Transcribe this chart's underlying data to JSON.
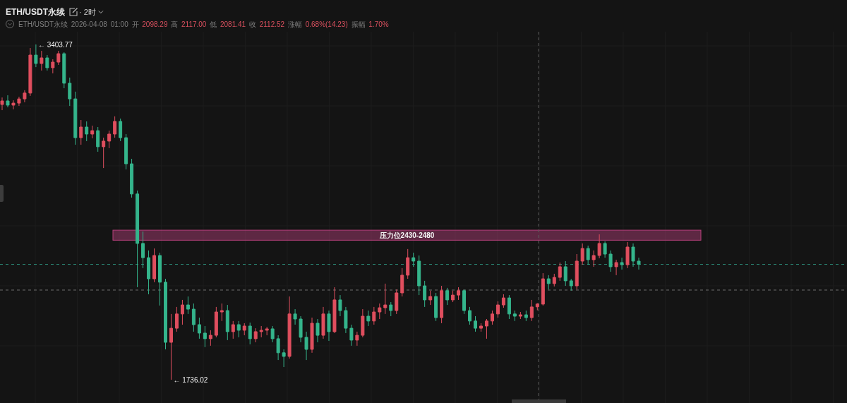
{
  "chart_data": {
    "type": "candlestick",
    "title": "ETH/USDT永续",
    "subtitle": "ETH/USDT永续 2026-04-08 01:00 开 2098.29 高 2117.00 低 2081.41 收 2112.52 涨幅 0.68%(14.23) 振幅 1.70%",
    "annotations": [
      "· 2时",
      "← 3403.77",
      "← 1736.02"
    ],
    "categories": [
      null,
      null,
      null,
      null,
      null,
      null,
      null,
      null,
      null,
      null,
      null,
      null,
      null,
      null,
      null,
      null,
      null,
      null,
      null,
      null,
      null,
      null,
      null,
      null,
      null,
      null,
      null,
      null,
      null,
      null,
      null,
      null,
      null,
      null,
      null,
      null,
      null,
      null,
      null,
      null,
      null,
      null,
      null,
      null,
      null,
      null,
      null,
      null,
      null,
      null,
      null,
      null,
      null,
      null,
      null,
      null,
      null,
      null,
      null,
      null,
      null,
      null,
      null,
      null,
      null,
      null,
      null,
      null,
      null,
      null,
      null,
      null,
      null,
      null,
      null,
      null,
      null,
      null,
      null,
      null,
      null,
      null,
      null,
      null,
      null,
      null,
      null,
      null,
      null,
      null,
      null,
      null,
      null,
      null,
      null,
      null,
      null,
      null,
      null,
      null,
      null,
      null,
      null,
      null,
      null,
      null,
      null,
      null,
      null,
      null,
      null,
      null,
      null,
      null
    ],
    "ohlc": [
      [
        3105,
        3140,
        3077,
        3123
      ],
      [
        3123,
        3151,
        3091,
        3102
      ],
      [
        3102,
        3126,
        3081,
        3112
      ],
      [
        3112,
        3144,
        3098,
        3133
      ],
      [
        3133,
        3176,
        3116,
        3162
      ],
      [
        3162,
        3386,
        3148,
        3351
      ],
      [
        3351,
        3403.77,
        3291,
        3309
      ],
      [
        3309,
        3372,
        3274,
        3337
      ],
      [
        3337,
        3351,
        3274,
        3288
      ],
      [
        3288,
        3330,
        3260,
        3316
      ],
      [
        3316,
        3372,
        3302,
        3358
      ],
      [
        3358,
        3365,
        3186,
        3211
      ],
      [
        3211,
        3239,
        3098,
        3133
      ],
      [
        3133,
        3169,
        2905,
        2940
      ],
      [
        2940,
        3028,
        2905,
        2993
      ],
      [
        2993,
        3021,
        2923,
        2958
      ],
      [
        2958,
        3000,
        2937,
        2975
      ],
      [
        2975,
        2993,
        2870,
        2895
      ],
      [
        2895,
        2940,
        2789,
        2923
      ],
      [
        2923,
        2975,
        2888,
        2958
      ],
      [
        2958,
        3046,
        2940,
        3021
      ],
      [
        3021,
        3035,
        2923,
        2940
      ],
      [
        2940,
        2958,
        2782,
        2810
      ],
      [
        2810,
        2835,
        2642,
        2660
      ],
      [
        2660,
        2677,
        2196,
        2414
      ],
      [
        2414,
        2473,
        2291,
        2343
      ],
      [
        2343,
        2379,
        2161,
        2238
      ],
      [
        2238,
        2389,
        2221,
        2354
      ],
      [
        2354,
        2368,
        2105,
        2221
      ],
      [
        2221,
        2238,
        1887,
        1922
      ],
      [
        1922,
        2063,
        1736.02,
        1992
      ],
      [
        1992,
        2098,
        1975,
        2063
      ],
      [
        2063,
        2133,
        2010,
        2108
      ],
      [
        2108,
        2150,
        2063,
        2087
      ],
      [
        2087,
        2115,
        1975,
        2010
      ],
      [
        2010,
        2045,
        1940,
        1968
      ],
      [
        1968,
        2003,
        1898,
        1940
      ],
      [
        1940,
        1982,
        1905,
        1957
      ],
      [
        1957,
        2098,
        1947,
        2073
      ],
      [
        2073,
        2115,
        2028,
        2080
      ],
      [
        2080,
        2108,
        1933,
        1975
      ],
      [
        1975,
        2028,
        1940,
        2010
      ],
      [
        2010,
        2028,
        1947,
        1982
      ],
      [
        1982,
        2017,
        1957,
        2003
      ],
      [
        2003,
        2020,
        1912,
        1940
      ],
      [
        1940,
        1992,
        1922,
        1975
      ],
      [
        1975,
        2003,
        1947,
        1982
      ],
      [
        1982,
        1999,
        1957,
        1989
      ],
      [
        1989,
        2003,
        1922,
        1940
      ],
      [
        1940,
        1957,
        1834,
        1870
      ],
      [
        1870,
        1887,
        1799,
        1852
      ],
      [
        1852,
        2150,
        1841,
        2063
      ],
      [
        2063,
        2087,
        2010,
        2038
      ],
      [
        2038,
        2052,
        1922,
        1947
      ],
      [
        1947,
        1975,
        1834,
        1887
      ],
      [
        1887,
        2045,
        1870,
        2017
      ],
      [
        2017,
        2038,
        1922,
        1957
      ],
      [
        1957,
        2098,
        1940,
        2063
      ],
      [
        2063,
        2080,
        1929,
        1975
      ],
      [
        1975,
        2196,
        1968,
        2133
      ],
      [
        2133,
        2157,
        2052,
        2080
      ],
      [
        2080,
        2098,
        1968,
        1992
      ],
      [
        1992,
        2010,
        1905,
        1933
      ],
      [
        1933,
        1975,
        1905,
        1957
      ],
      [
        1957,
        2087,
        1947,
        2052
      ],
      [
        2052,
        2080,
        2003,
        2028
      ],
      [
        2028,
        2098,
        2010,
        2073
      ],
      [
        2073,
        2115,
        2038,
        2094
      ],
      [
        2094,
        2214,
        2063,
        2108
      ],
      [
        2108,
        2122,
        2052,
        2080
      ],
      [
        2080,
        2185,
        2063,
        2168
      ],
      [
        2168,
        2291,
        2150,
        2256
      ],
      [
        2256,
        2386,
        2238,
        2343
      ],
      [
        2343,
        2368,
        2298,
        2326
      ],
      [
        2326,
        2354,
        2157,
        2203
      ],
      [
        2203,
        2228,
        2098,
        2133
      ],
      [
        2133,
        2179,
        2108,
        2150
      ],
      [
        2150,
        2168,
        2028,
        2045
      ],
      [
        2045,
        2203,
        2017,
        2179
      ],
      [
        2179,
        2193,
        2108,
        2133
      ],
      [
        2133,
        2179,
        2122,
        2157
      ],
      [
        2157,
        2196,
        2133,
        2179
      ],
      [
        2179,
        2185,
        2063,
        2080
      ],
      [
        2080,
        2098,
        2010,
        2028
      ],
      [
        2028,
        2052,
        1975,
        1992
      ],
      [
        1992,
        2017,
        1975,
        2003
      ],
      [
        2003,
        2038,
        1940,
        2028
      ],
      [
        2028,
        2080,
        2010,
        2063
      ],
      [
        2063,
        2126,
        2045,
        2108
      ],
      [
        2108,
        2161,
        2094,
        2143
      ],
      [
        2143,
        2157,
        2038,
        2063
      ],
      [
        2063,
        2080,
        2028,
        2052
      ],
      [
        2052,
        2073,
        2038,
        2059
      ],
      [
        2059,
        2080,
        2028,
        2045
      ],
      [
        2045,
        2133,
        2028,
        2098
      ],
      [
        2098.29,
        2117.0,
        2081.41,
        2112.52
      ],
      [
        2112,
        2266,
        2105,
        2238
      ],
      [
        2238,
        2256,
        2185,
        2214
      ],
      [
        2214,
        2263,
        2200,
        2245
      ],
      [
        2245,
        2319,
        2228,
        2298
      ],
      [
        2298,
        2326,
        2203,
        2228
      ],
      [
        2228,
        2238,
        2179,
        2203
      ],
      [
        2203,
        2361,
        2185,
        2326
      ],
      [
        2326,
        2414,
        2308,
        2389
      ],
      [
        2389,
        2403,
        2308,
        2333
      ],
      [
        2333,
        2379,
        2298,
        2354
      ],
      [
        2354,
        2459,
        2340,
        2414
      ],
      [
        2414,
        2424,
        2343,
        2361
      ],
      [
        2361,
        2379,
        2273,
        2298
      ],
      [
        2298,
        2333,
        2256,
        2319
      ],
      [
        2319,
        2343,
        2284,
        2308
      ],
      [
        2308,
        2421,
        2291,
        2396
      ],
      [
        2396,
        2414,
        2298,
        2326
      ],
      [
        2326,
        2343,
        2284,
        2310
      ]
    ],
    "colors": [
      "#e04f5f",
      "#35b58c",
      "#e04f5f",
      "#e04f5f",
      "#e04f5f",
      "#e04f5f",
      "#35b58c",
      "#e04f5f",
      "#35b58c",
      "#e04f5f",
      "#e04f5f",
      "#35b58c",
      "#35b58c",
      "#35b58c",
      "#e04f5f",
      "#35b58c",
      "#e04f5f",
      "#35b58c",
      "#e04f5f",
      "#e04f5f",
      "#e04f5f",
      "#35b58c",
      "#35b58c",
      "#35b58c",
      "#35b58c",
      "#35b58c",
      "#35b58c",
      "#e04f5f",
      "#35b58c",
      "#35b58c",
      "#e04f5f",
      "#e04f5f",
      "#e04f5f",
      "#35b58c",
      "#35b58c",
      "#35b58c",
      "#35b58c",
      "#e04f5f",
      "#e04f5f",
      "#e04f5f",
      "#35b58c",
      "#e04f5f",
      "#35b58c",
      "#e04f5f",
      "#35b58c",
      "#e04f5f",
      "#e04f5f",
      "#e04f5f",
      "#35b58c",
      "#35b58c",
      "#35b58c",
      "#e04f5f",
      "#35b58c",
      "#35b58c",
      "#35b58c",
      "#e04f5f",
      "#35b58c",
      "#e04f5f",
      "#35b58c",
      "#e04f5f",
      "#35b58c",
      "#35b58c",
      "#35b58c",
      "#e04f5f",
      "#e04f5f",
      "#35b58c",
      "#e04f5f",
      "#e04f5f",
      "#e04f5f",
      "#35b58c",
      "#e04f5f",
      "#e04f5f",
      "#e04f5f",
      "#35b58c",
      "#35b58c",
      "#35b58c",
      "#e04f5f",
      "#35b58c",
      "#e04f5f",
      "#35b58c",
      "#e04f5f",
      "#e04f5f",
      "#35b58c",
      "#35b58c",
      "#35b58c",
      "#e04f5f",
      "#e04f5f",
      "#e04f5f",
      "#e04f5f",
      "#e04f5f",
      "#35b58c",
      "#35b58c",
      "#e04f5f",
      "#35b58c",
      "#e04f5f",
      "#e04f5f",
      "#e04f5f",
      "#35b58c",
      "#e04f5f",
      "#e04f5f",
      "#35b58c",
      "#35b58c",
      "#e04f5f",
      "#e04f5f",
      "#35b58c",
      "#e04f5f",
      "#e04f5f",
      "#35b58c",
      "#35b58c",
      "#e04f5f",
      "#35b58c",
      "#e04f5f",
      "#35b58c",
      "#35b58c"
    ],
    "bands": [
      {
        "axis": "y",
        "from": 2430,
        "to": 2480,
        "label": "压力位2430-2480",
        "color": "#b8407c"
      }
    ],
    "ref_lines": [
      {
        "axis": "y",
        "value": 2310,
        "color": "#2b8a76",
        "line_style": "dashed"
      },
      {
        "axis": "y",
        "value": 2182,
        "color": "#707070",
        "line_style": "dashed"
      }
    ],
    "grid": true,
    "tick_labels": false
  }
}
